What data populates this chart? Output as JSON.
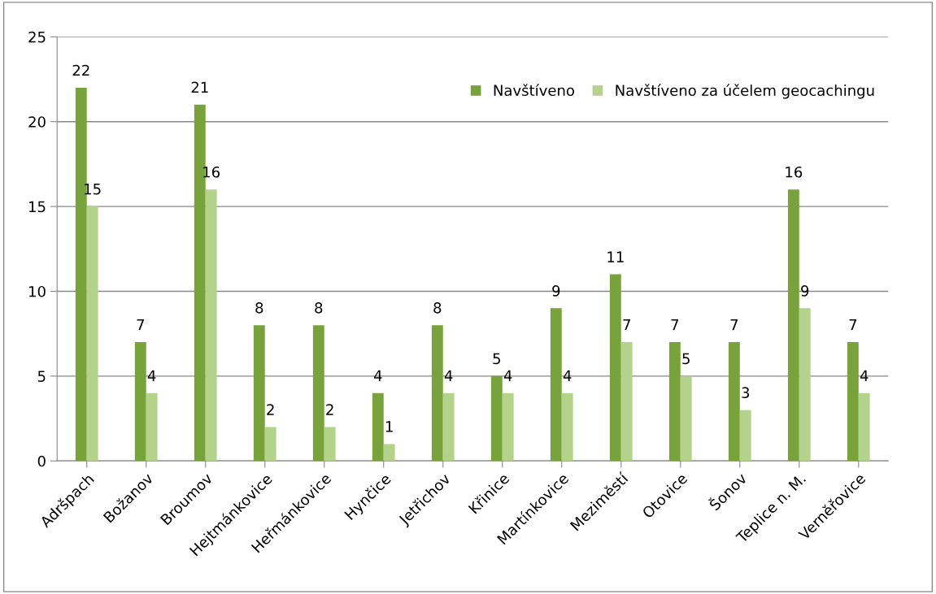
{
  "chart_data": {
    "type": "bar",
    "categories": [
      "Adršpach",
      "Božanov",
      "Broumov",
      "Hejtmánkovice",
      "Heřmánkovice",
      "Hynčice",
      "Jetřichov",
      "Křinice",
      "Martínkovice",
      "Meziměstí",
      "Otovice",
      "Šonov",
      "Teplice n. M.",
      "Verněřovice"
    ],
    "series": [
      {
        "name": "Navštíveno",
        "color": "#77a33a",
        "values": [
          22,
          7,
          21,
          8,
          8,
          4,
          8,
          5,
          9,
          11,
          7,
          7,
          16,
          7
        ]
      },
      {
        "name": "Navštíveno za účelem geocachingu",
        "color": "#b3d38a",
        "values": [
          15,
          4,
          16,
          2,
          2,
          1,
          4,
          4,
          4,
          7,
          5,
          3,
          9,
          4
        ]
      }
    ],
    "ylim": [
      0,
      25
    ],
    "yticks": [
      0,
      5,
      10,
      15,
      20,
      25
    ],
    "grid": "y",
    "legend": "top right",
    "data_labels": true
  }
}
